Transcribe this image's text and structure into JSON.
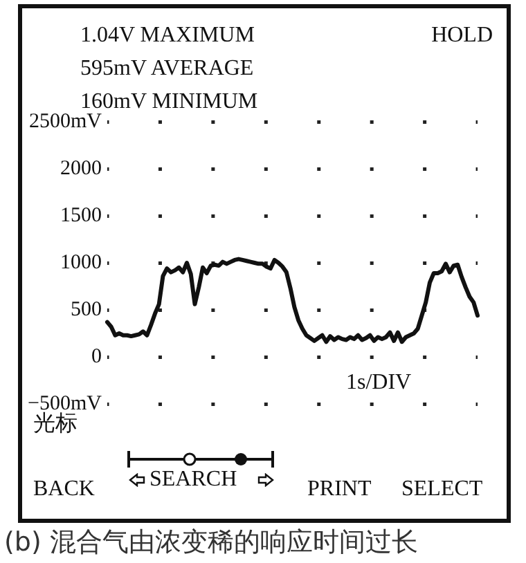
{
  "chart_data": {
    "type": "line",
    "title": "(b) 混合气由浓变稀的响应时间过长",
    "annotations": [
      "1.04V MAXIMUM",
      "595mV AVERAGE",
      "160mV MINIMUM",
      "HOLD",
      "1s/DIV",
      "光标",
      "SEARCH",
      "BACK",
      "PRINT",
      "SELECT"
    ],
    "categories": [
      null,
      null,
      null,
      null,
      null,
      null,
      null,
      null,
      null,
      null,
      null,
      null,
      null,
      null,
      null,
      null,
      null,
      null,
      null,
      null,
      null,
      null,
      null,
      null,
      null,
      null,
      null,
      null,
      null,
      null,
      null,
      null,
      null,
      null,
      null,
      null,
      null,
      null,
      null,
      null,
      null,
      null,
      null,
      null,
      null,
      null,
      null,
      null,
      null,
      null,
      null,
      null,
      null,
      null,
      null,
      null,
      null,
      null,
      null,
      null,
      null,
      null,
      null,
      null,
      null,
      null,
      null,
      null,
      null,
      null,
      null,
      null,
      null,
      null,
      null,
      null,
      null,
      null,
      null,
      null,
      null,
      null,
      null,
      null,
      null,
      null,
      null,
      null,
      null,
      null,
      null,
      null,
      null,
      null
    ],
    "series": [
      {
        "color": "#111111",
        "values": [
          370,
          320,
          230,
          250,
          230,
          230,
          220,
          230,
          240,
          270,
          230,
          340,
          460,
          560,
          860,
          940,
          900,
          920,
          950,
          900,
          1000,
          880,
          560,
          740,
          950,
          890,
          970,
          980,
          970,
          1010,
          990,
          1010,
          1030,
          1040,
          1030,
          1020,
          1010,
          1000,
          990,
          990,
          960,
          940,
          1030,
          1000,
          960,
          900,
          730,
          530,
          390,
          300,
          230,
          200,
          170,
          200,
          230,
          160,
          220,
          180,
          210,
          190,
          180,
          210,
          190,
          230,
          180,
          200,
          230,
          170,
          210,
          190,
          210,
          260,
          170,
          260,
          160,
          210,
          230,
          250,
          300,
          440,
          580,
          790,
          890,
          890,
          910,
          990,
          900,
          970,
          980,
          850,
          740,
          640,
          580,
          440
        ]
      }
    ],
    "ylim": [
      -500,
      2500
    ],
    "yticks": [
      {
        "value": -500,
        "label": "−500mV"
      },
      0,
      500,
      1000,
      1500,
      2000,
      {
        "value": 2500,
        "label": "2500mV"
      }
    ],
    "grid": true,
    "legend": false,
    "marker": "none",
    "line_style": "solid"
  }
}
